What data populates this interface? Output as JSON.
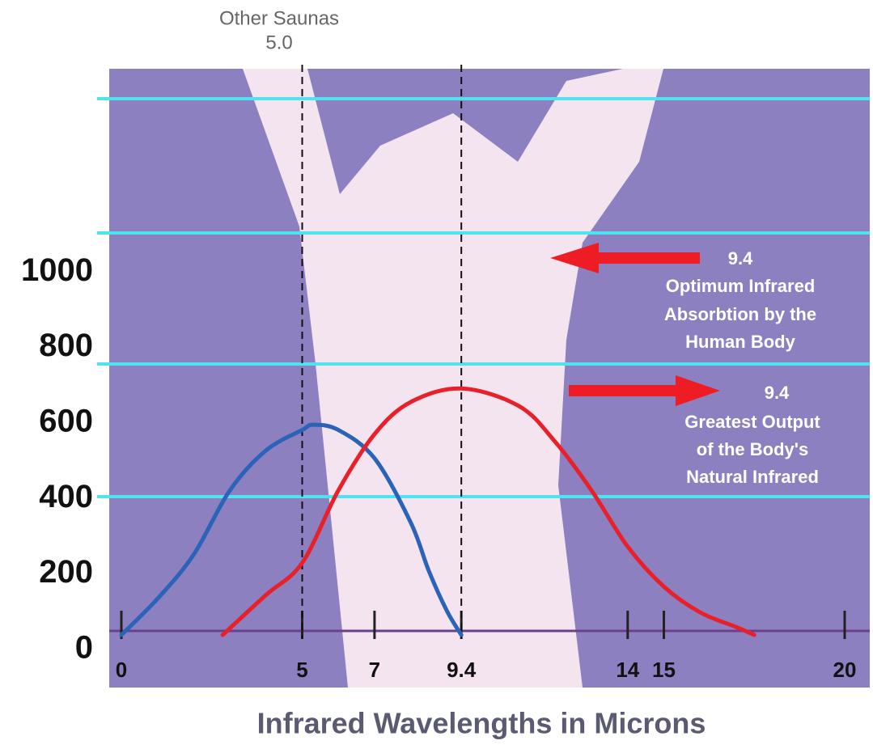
{
  "chart_data": {
    "type": "line",
    "x_label": "Infrared Wavelengths in Microns",
    "xlim": [
      0,
      20
    ],
    "xticks": [
      0,
      5,
      7,
      9.4,
      14,
      15,
      20
    ],
    "ylim": [
      0,
      1500
    ],
    "yticks": [
      0,
      200,
      400,
      600,
      800,
      1000
    ],
    "series": [
      {
        "color": "#2a63b8",
        "x": [
          0,
          1,
          2,
          3,
          4,
          5,
          5.3,
          6,
          7,
          8,
          8.5,
          9,
          9.4
        ],
        "values": [
          0,
          96,
          213,
          383,
          489,
          543,
          557,
          543,
          468,
          298,
          170,
          64,
          0
        ]
      },
      {
        "color": "#e8202a",
        "x": [
          2.8,
          4,
          5,
          6,
          7,
          8,
          9.4,
          11,
          12,
          13,
          14,
          15,
          16,
          17,
          17.5
        ],
        "values": [
          0,
          106,
          191,
          383,
          532,
          617,
          653,
          606,
          511,
          383,
          234,
          128,
          60,
          21,
          0
        ]
      }
    ],
    "annotations": [
      {
        "lines": [
          "Other Saunas",
          "5.0"
        ]
      },
      {
        "lines": [
          "9.4",
          "Optimum Infrared",
          "Absorbtion by the",
          "Human Body"
        ]
      },
      {
        "lines": [
          "9.4",
          "Greatest Output",
          "of the Body's",
          "Natural Infrared"
        ]
      }
    ]
  }
}
